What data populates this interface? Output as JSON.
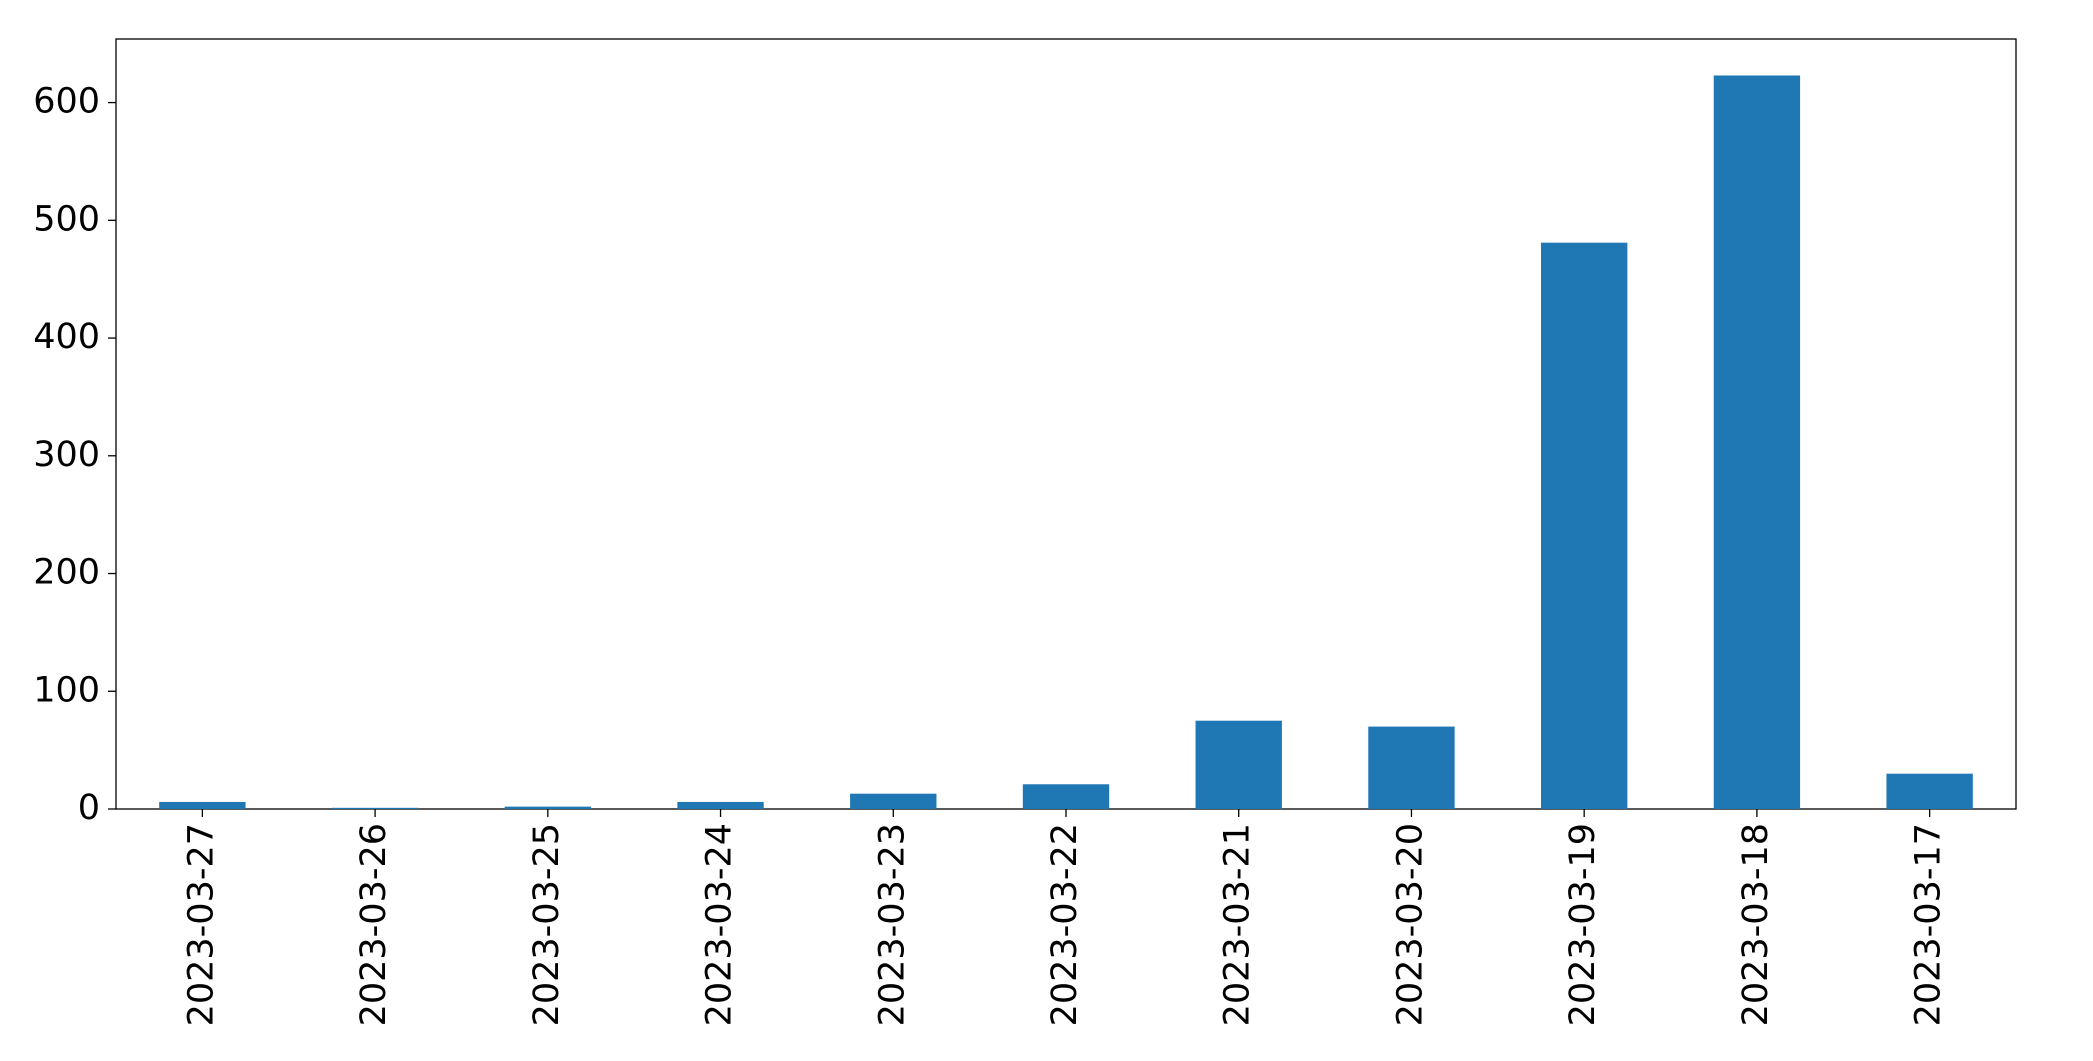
{
  "chart_data": {
    "type": "bar",
    "categories": [
      "2023-03-27",
      "2023-03-26",
      "2023-03-25",
      "2023-03-24",
      "2023-03-23",
      "2023-03-22",
      "2023-03-21",
      "2023-03-20",
      "2023-03-19",
      "2023-03-18",
      "2023-03-17"
    ],
    "values": [
      6,
      1,
      2,
      6,
      13,
      21,
      75,
      70,
      481,
      623,
      30
    ],
    "color": "#1f77b4",
    "ylim": [
      0,
      654
    ],
    "yticks": [
      0,
      100,
      200,
      300,
      400,
      500,
      600
    ],
    "grid": false
  }
}
